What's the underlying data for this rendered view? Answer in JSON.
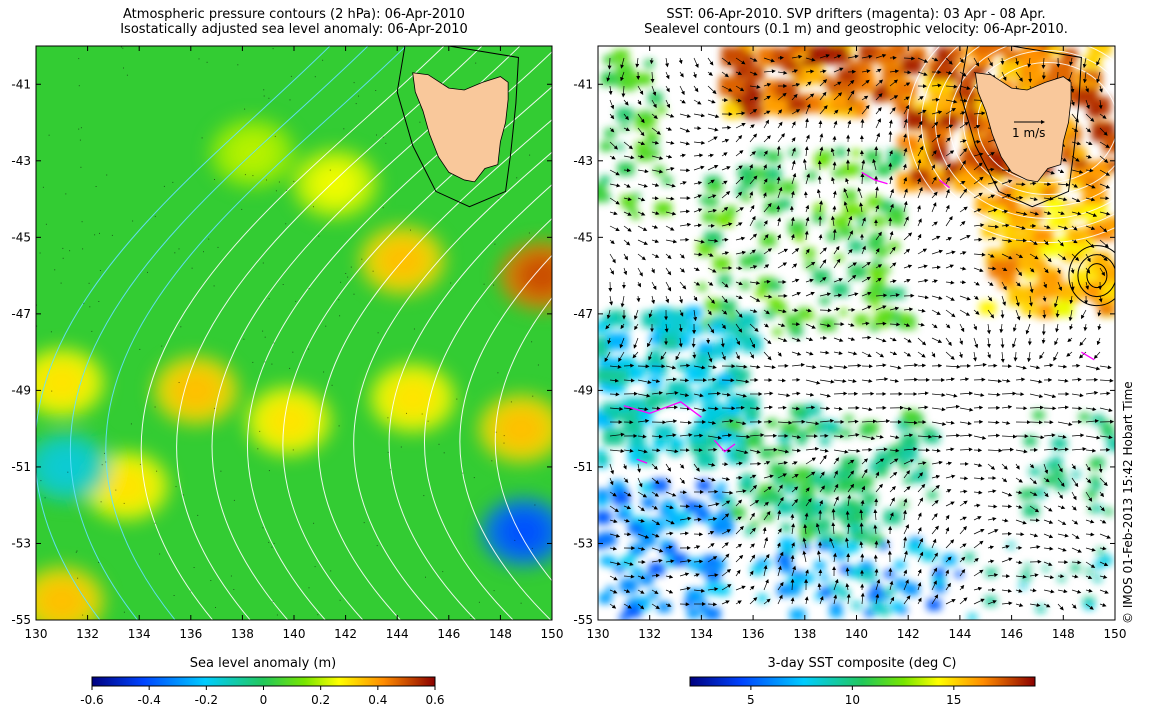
{
  "figure": {
    "credit": "© IMOS 01-Feb-2013 15:42 Hobart Time",
    "colors": {
      "land": "#f9c89b",
      "sea_bg": "#33cc33",
      "contour_white": "#ffffff",
      "contour_cyan": "#66e0ff",
      "drifters": "#ff00ff"
    }
  },
  "chart_data": [
    {
      "type": "heatmap",
      "id": "left",
      "title_line1": "Atmospheric pressure contours (2 hPa): 06-Apr-2010",
      "title_line2": "Isostatically adjusted sea level anomaly: 06-Apr-2010",
      "xlim": [
        130,
        150
      ],
      "ylim": [
        -55,
        -40
      ],
      "xticks": [
        "130",
        "132",
        "134",
        "136",
        "138",
        "140",
        "142",
        "144",
        "146",
        "148",
        "150"
      ],
      "yticks": [
        "-41",
        "-43",
        "-45",
        "-47",
        "-49",
        "-51",
        "-53",
        "-55"
      ],
      "colorbar": {
        "label": "Sea level anomaly (m)",
        "ticks": [
          "-0.6",
          "-0.4",
          "-0.2",
          "0",
          "0.2",
          "0.4",
          "0.6"
        ],
        "range": [
          -0.6,
          0.6
        ]
      },
      "features": [
        {
          "lon": 131.0,
          "lat": -48.8,
          "value": 0.3
        },
        {
          "lon": 133.5,
          "lat": -51.5,
          "value": 0.3
        },
        {
          "lon": 136.2,
          "lat": -49.0,
          "value": 0.35
        },
        {
          "lon": 139.8,
          "lat": -49.8,
          "value": 0.3
        },
        {
          "lon": 144.6,
          "lat": -49.2,
          "value": 0.3
        },
        {
          "lon": 148.8,
          "lat": -50.0,
          "value": 0.35
        },
        {
          "lon": 144.2,
          "lat": -45.6,
          "value": 0.35
        },
        {
          "lon": 149.6,
          "lat": -46.0,
          "value": 0.5
        },
        {
          "lon": 141.6,
          "lat": -43.6,
          "value": 0.25
        },
        {
          "lon": 138.4,
          "lat": -42.8,
          "value": 0.2
        },
        {
          "lon": 131.0,
          "lat": -54.5,
          "value": 0.35
        },
        {
          "lon": 148.9,
          "lat": -52.7,
          "value": -0.4
        },
        {
          "lon": 131.2,
          "lat": -51.0,
          "value": -0.15
        }
      ]
    },
    {
      "type": "heatmap",
      "id": "right",
      "title_line1": "SST: 06-Apr-2010. SVP drifters (magenta): 03 Apr - 08 Apr.",
      "title_line2": "Sealevel contours (0.1 m) and geostrophic velocity: 06-Apr-2010.",
      "xlim": [
        130,
        150
      ],
      "ylim": [
        -55,
        -40
      ],
      "xticks": [
        "130",
        "132",
        "134",
        "136",
        "138",
        "140",
        "142",
        "144",
        "146",
        "148",
        "150"
      ],
      "yticks": [
        "-41",
        "-43",
        "-45",
        "-47",
        "-49",
        "-51",
        "-53",
        "-55"
      ],
      "velocity_scale_label": "1 m/s",
      "colorbar": {
        "label": "3-day SST composite (deg C)",
        "ticks": [
          "5",
          "10",
          "15"
        ],
        "range": [
          2,
          19
        ]
      }
    }
  ]
}
